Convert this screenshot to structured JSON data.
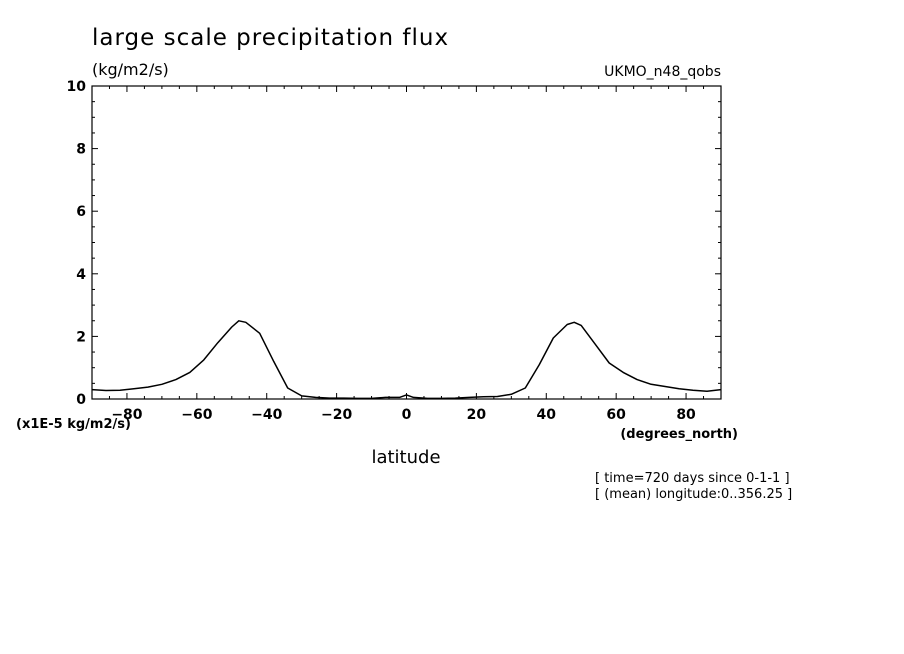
{
  "chart_data": {
    "type": "line",
    "title": "large scale precipitation flux",
    "units": "(kg/m2/s)",
    "dataset": "UKMO_n48_qobs",
    "ylabel": "(x1E-5 kg/m2/s)",
    "xlabel": "latitude",
    "xunits": "(degrees_north)",
    "notes": [
      "[ time=720 days since 0-1-1 ]",
      "[ (mean) longitude:0..356.25 ]"
    ],
    "xlim": [
      -90,
      90
    ],
    "ylim": [
      0,
      10
    ],
    "xticks": [
      -80,
      -60,
      -40,
      -20,
      0,
      20,
      40,
      60,
      80
    ],
    "yticks": [
      0,
      2,
      4,
      6,
      8,
      10
    ],
    "grid": false,
    "series": [
      {
        "x": [
          -90,
          -86,
          -82,
          -78,
          -74,
          -70,
          -66,
          -62,
          -58,
          -54,
          -50,
          -48,
          -46,
          -42,
          -38,
          -34,
          -30,
          -26,
          -22,
          -18,
          -14,
          -10,
          -6,
          -2,
          0,
          2,
          6,
          10,
          14,
          18,
          22,
          26,
          30,
          34,
          38,
          42,
          46,
          48,
          50,
          54,
          58,
          62,
          66,
          70,
          74,
          78,
          82,
          86,
          90
        ],
        "y": [
          0.3,
          0.27,
          0.28,
          0.33,
          0.38,
          0.47,
          0.62,
          0.85,
          1.25,
          1.8,
          2.3,
          2.5,
          2.45,
          2.1,
          1.2,
          0.35,
          0.1,
          0.05,
          0.03,
          0.03,
          0.02,
          0.02,
          0.05,
          0.05,
          0.13,
          0.05,
          0.02,
          0.02,
          0.03,
          0.05,
          0.07,
          0.08,
          0.15,
          0.35,
          1.1,
          1.95,
          2.38,
          2.45,
          2.35,
          1.75,
          1.15,
          0.85,
          0.62,
          0.47,
          0.4,
          0.33,
          0.28,
          0.25,
          0.3
        ]
      }
    ]
  }
}
